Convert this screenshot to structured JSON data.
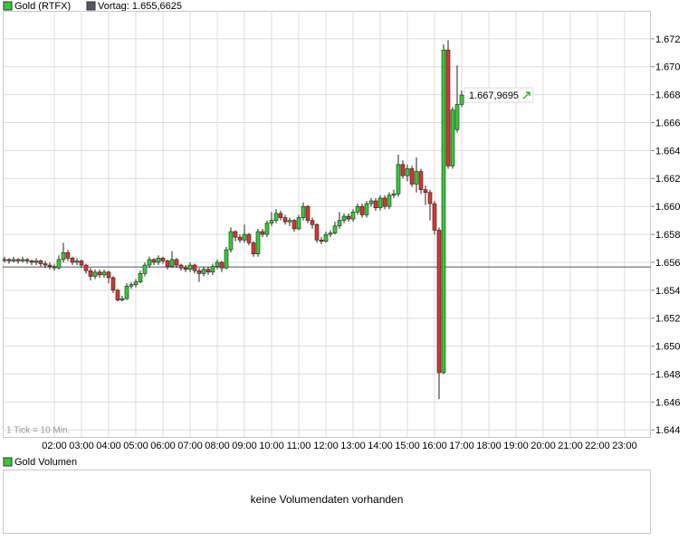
{
  "chart_data": {
    "type": "candlestick",
    "title": "Gold (RTFX)",
    "reference_line": {
      "label": "Vortag: 1.655,6625",
      "value": 1.6556625,
      "color": "#555566"
    },
    "last_price": {
      "value": 1.6679695,
      "label": "1.667,9695"
    },
    "note": "1 Tick = 10 Min.",
    "color_up": "#33cc33",
    "color_down": "#dd3333",
    "grid": true,
    "ylim": [
      1.6435,
      1.674
    ],
    "yticks": [
      1.644,
      1.646,
      1.648,
      {
        "value": 1.65,
        "label": "1.650"
      },
      1.652,
      1.654,
      1.656,
      1.658,
      {
        "value": 1.66,
        "label": "1.660"
      },
      1.662,
      1.664,
      1.666,
      1.668,
      {
        "value": 1.67,
        "label": "1.670"
      },
      1.672
    ],
    "xticks": [
      "02:00",
      "03:00",
      "04:00",
      "05:00",
      "06:00",
      "07:00",
      "08:00",
      "09:00",
      "10:00",
      "11:00",
      "12:00",
      "13:00",
      "14:00",
      "15:00",
      "16:00",
      "17:00",
      "18:00",
      "19:00",
      "20:00",
      "21:00",
      "22:00",
      "23:00"
    ],
    "x": [
      "00:10",
      "00:20",
      "00:30",
      "00:40",
      "00:50",
      "01:00",
      "01:10",
      "01:20",
      "01:30",
      "01:40",
      "01:50",
      "02:00",
      "02:10",
      "02:20",
      "02:30",
      "02:40",
      "02:50",
      "03:00",
      "03:10",
      "03:20",
      "03:30",
      "03:40",
      "03:50",
      "04:00",
      "04:10",
      "04:20",
      "04:30",
      "04:40",
      "04:50",
      "05:00",
      "05:10",
      "05:20",
      "05:30",
      "05:40",
      "05:50",
      "06:00",
      "06:10",
      "06:20",
      "06:30",
      "06:40",
      "06:50",
      "07:00",
      "07:10",
      "07:20",
      "07:30",
      "07:40",
      "07:50",
      "08:00",
      "08:10",
      "08:20",
      "08:30",
      "08:40",
      "08:50",
      "09:00",
      "09:10",
      "09:20",
      "09:30",
      "09:40",
      "09:50",
      "10:00",
      "10:10",
      "10:20",
      "10:30",
      "10:40",
      "10:50",
      "11:00",
      "11:10",
      "11:20",
      "11:30",
      "11:40",
      "11:50",
      "12:00",
      "12:10",
      "12:20",
      "12:30",
      "12:40",
      "12:50",
      "13:00",
      "13:10",
      "13:20",
      "13:30",
      "13:40",
      "13:50",
      "14:00",
      "14:10",
      "14:20",
      "14:30",
      "14:40",
      "14:50",
      "15:00",
      "15:10",
      "15:20",
      "15:30",
      "15:40",
      "15:50",
      "16:00",
      "16:10",
      "16:20",
      "16:30",
      "16:40",
      "16:50",
      "17:00"
    ],
    "open": [
      1.6562,
      1.6562,
      1.6561,
      1.6562,
      1.6561,
      1.6562,
      1.6561,
      1.656,
      1.6561,
      1.6559,
      1.6558,
      1.6557,
      1.6556,
      1.6562,
      1.6567,
      1.6563,
      1.656,
      1.6561,
      1.6558,
      1.6554,
      1.655,
      1.6553,
      1.6551,
      1.6553,
      1.6549,
      1.654,
      1.6533,
      1.6534,
      1.6543,
      1.6544,
      1.6546,
      1.6552,
      1.6558,
      1.6562,
      1.656,
      1.6563,
      1.6561,
      1.6557,
      1.6562,
      1.6558,
      1.6556,
      1.6555,
      1.6558,
      1.6554,
      1.6552,
      1.6555,
      1.6553,
      1.6557,
      1.656,
      1.6556,
      1.6569,
      1.6582,
      1.6578,
      1.6576,
      1.658,
      1.6574,
      1.6566,
      1.6582,
      1.658,
      1.6588,
      1.659,
      1.6595,
      1.6592,
      1.6589,
      1.659,
      1.6584,
      1.6592,
      1.66,
      1.659,
      1.6587,
      1.6576,
      1.6575,
      1.658,
      1.6581,
      1.6586,
      1.659,
      1.6593,
      1.6591,
      1.6596,
      1.66,
      1.6594,
      1.6602,
      1.6604,
      1.6599,
      1.6606,
      1.66,
      1.6608,
      1.6609,
      1.663,
      1.6622,
      1.6627,
      1.6616,
      1.6625,
      1.6612,
      1.661,
      1.6602,
      1.6583,
      1.6481,
      1.6712,
      1.6629,
      1.6655,
      1.6673
    ],
    "high": [
      1.6564,
      1.6563,
      1.6564,
      1.6563,
      1.6564,
      1.6563,
      1.6562,
      1.6563,
      1.6562,
      1.6561,
      1.656,
      1.6559,
      1.6565,
      1.6574,
      1.6569,
      1.6564,
      1.6563,
      1.6562,
      1.6559,
      1.6556,
      1.6555,
      1.6555,
      1.6555,
      1.6554,
      1.655,
      1.6541,
      1.6536,
      1.6545,
      1.6546,
      1.6548,
      1.6554,
      1.656,
      1.6564,
      1.6563,
      1.6565,
      1.6564,
      1.6562,
      1.6568,
      1.6563,
      1.6559,
      1.6558,
      1.656,
      1.6559,
      1.6556,
      1.6557,
      1.6557,
      1.6559,
      1.6562,
      1.6561,
      1.6571,
      1.6585,
      1.6583,
      1.658,
      1.6587,
      1.6581,
      1.6575,
      1.6584,
      1.6584,
      1.659,
      1.6596,
      1.6598,
      1.6597,
      1.6594,
      1.6592,
      1.6591,
      1.6594,
      1.6603,
      1.6601,
      1.6592,
      1.6588,
      1.6578,
      1.6582,
      1.6583,
      1.6589,
      1.6596,
      1.6595,
      1.6595,
      1.6598,
      1.6602,
      1.6602,
      1.6604,
      1.6606,
      1.6606,
      1.6608,
      1.6608,
      1.661,
      1.6612,
      1.6637,
      1.6633,
      1.663,
      1.6629,
      1.6635,
      1.6627,
      1.6615,
      1.6612,
      1.6604,
      1.6585,
      1.6716,
      1.6719,
      1.6671,
      1.6701,
      1.6683
    ],
    "low": [
      1.656,
      1.6559,
      1.656,
      1.6559,
      1.656,
      1.6559,
      1.6558,
      1.6558,
      1.6557,
      1.6556,
      1.6555,
      1.6554,
      1.6555,
      1.656,
      1.6561,
      1.6558,
      1.6558,
      1.6556,
      1.6552,
      1.6547,
      1.6548,
      1.6549,
      1.6549,
      1.6545,
      1.6538,
      1.6532,
      1.6532,
      1.6533,
      1.6541,
      1.6542,
      1.6545,
      1.655,
      1.6556,
      1.6558,
      1.6558,
      1.6559,
      1.6555,
      1.6556,
      1.6556,
      1.6554,
      1.6553,
      1.6553,
      1.6552,
      1.6546,
      1.655,
      1.6551,
      1.6551,
      1.6555,
      1.6553,
      1.6555,
      1.6567,
      1.6575,
      1.6574,
      1.6574,
      1.6572,
      1.6564,
      1.6564,
      1.6578,
      1.6578,
      1.6586,
      1.6588,
      1.659,
      1.6587,
      1.6586,
      1.6582,
      1.6583,
      1.659,
      1.6588,
      1.6584,
      1.6574,
      1.6573,
      1.6574,
      1.6578,
      1.658,
      1.6584,
      1.6588,
      1.6589,
      1.6589,
      1.6594,
      1.6592,
      1.6592,
      1.66,
      1.6597,
      1.6597,
      1.6598,
      1.6598,
      1.6606,
      1.6607,
      1.662,
      1.6618,
      1.6614,
      1.661,
      1.6609,
      1.6601,
      1.659,
      1.658,
      1.6462,
      1.648,
      1.6627,
      1.6627,
      1.6653,
      1.6671
    ],
    "close": [
      1.6562,
      1.6561,
      1.6562,
      1.6561,
      1.6562,
      1.6561,
      1.656,
      1.6561,
      1.6559,
      1.6558,
      1.6557,
      1.6556,
      1.6562,
      1.6567,
      1.6563,
      1.656,
      1.6561,
      1.6558,
      1.6554,
      1.655,
      1.6553,
      1.6551,
      1.6553,
      1.6549,
      1.654,
      1.6533,
      1.6534,
      1.6543,
      1.6544,
      1.6546,
      1.6552,
      1.6558,
      1.6562,
      1.656,
      1.6563,
      1.6561,
      1.6557,
      1.6562,
      1.6558,
      1.6556,
      1.6555,
      1.6558,
      1.6554,
      1.6552,
      1.6555,
      1.6553,
      1.6557,
      1.656,
      1.6556,
      1.6569,
      1.6582,
      1.6578,
      1.6576,
      1.658,
      1.6574,
      1.6566,
      1.6582,
      1.658,
      1.6588,
      1.659,
      1.6595,
      1.6592,
      1.6589,
      1.659,
      1.6584,
      1.6592,
      1.66,
      1.659,
      1.6587,
      1.6576,
      1.6575,
      1.658,
      1.6581,
      1.6586,
      1.659,
      1.6593,
      1.6591,
      1.6596,
      1.66,
      1.6594,
      1.6602,
      1.6604,
      1.6599,
      1.6606,
      1.66,
      1.6608,
      1.6609,
      1.663,
      1.6622,
      1.6627,
      1.6616,
      1.6625,
      1.6612,
      1.661,
      1.6602,
      1.6583,
      1.6481,
      1.6712,
      1.6629,
      1.6669,
      1.6673,
      1.66797
    ],
    "volume_panel": {
      "title": "Gold Volumen",
      "message": "keine Volumendaten vorhanden"
    }
  }
}
